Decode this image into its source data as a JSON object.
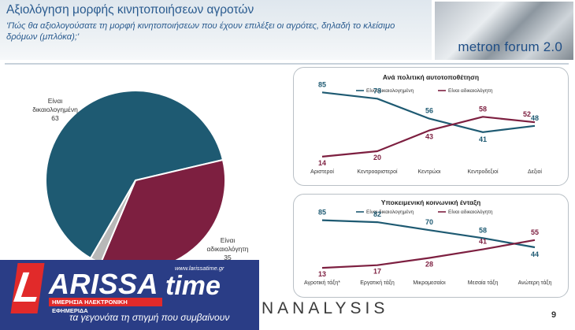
{
  "header": {
    "title": "Αξιολόγηση μορφής κινητοποιήσεων αγροτών",
    "subtitle": "'Πώς θα αξιολογούσατε τη μορφή κινητοποιήσεων που έχουν επιλέξει οι αγρότες, δηλαδή το κλείσιμο δρόμων (μπλόκα);'",
    "forum_label": "metron forum 2.0"
  },
  "footer": {
    "analysis_label": "NANALYSIS",
    "page_number": "9"
  },
  "logo": {
    "letter": "L",
    "main": "ARISSA",
    "time": "time",
    "url": "www.larissatime.gr",
    "band": "ΗΜΕΡΗΣΙΑ ΗΛΕΚΤΡΟΝΙΚΗ ΕΦΗΜΕΡΙΔΑ",
    "tagline": "τα γεγονότα τη στιγμή που συμβαίνουν"
  },
  "colors": {
    "justified": "#1e5a72",
    "unjustified": "#7d1f40",
    "other": "#b8b8b8",
    "title": "#2a5b8f"
  },
  "chart_data": [
    {
      "type": "pie",
      "labels": [
        "Είναι δικαιολογημένη",
        "Είναι αδικαιολόγητη"
      ],
      "values": [
        63,
        35
      ],
      "colors": [
        "#1e5a72",
        "#7d1f40",
        "#b8b8b8"
      ],
      "label_texts": [
        {
          "line1": "Είναι",
          "line2": "δικαιολογημένη",
          "value": "63"
        },
        {
          "line1": "Είναι",
          "line2": "αδικαιολόγητη",
          "value": "35"
        }
      ]
    },
    {
      "type": "line",
      "title": "Ανά πολιτική αυτοτοποθέτηση",
      "categories": [
        "Αριστεροί",
        "Κεντροαριστεροί",
        "Κεντρώοι",
        "Κεντροδεξιοί",
        "Δεξιοί"
      ],
      "series": [
        {
          "name": "Είναι δικαιολογημένη",
          "values": [
            85,
            78,
            56,
            41,
            48
          ],
          "color": "#1e5a72"
        },
        {
          "name": "Είναι αδικαιολόγητη",
          "values": [
            14,
            20,
            43,
            58,
            52
          ],
          "color": "#7d1f40"
        }
      ],
      "ylim": [
        0,
        100
      ]
    },
    {
      "type": "line",
      "title": "Υποκειμενική κοινωνική ένταξη",
      "categories": [
        "Αγροτική τάξη*",
        "Εργατική τάξη",
        "Μικρομεσαίοι",
        "Μεσαία τάξη",
        "Ανώτερη τάξη"
      ],
      "series": [
        {
          "name": "Είναι δικαιολογημένη",
          "values": [
            85,
            82,
            70,
            58,
            44
          ],
          "color": "#1e5a72"
        },
        {
          "name": "Είναι αδικαιολόγητη",
          "values": [
            13,
            17,
            28,
            41,
            55
          ],
          "color": "#7d1f40"
        }
      ],
      "ylim": [
        0,
        100
      ]
    }
  ]
}
